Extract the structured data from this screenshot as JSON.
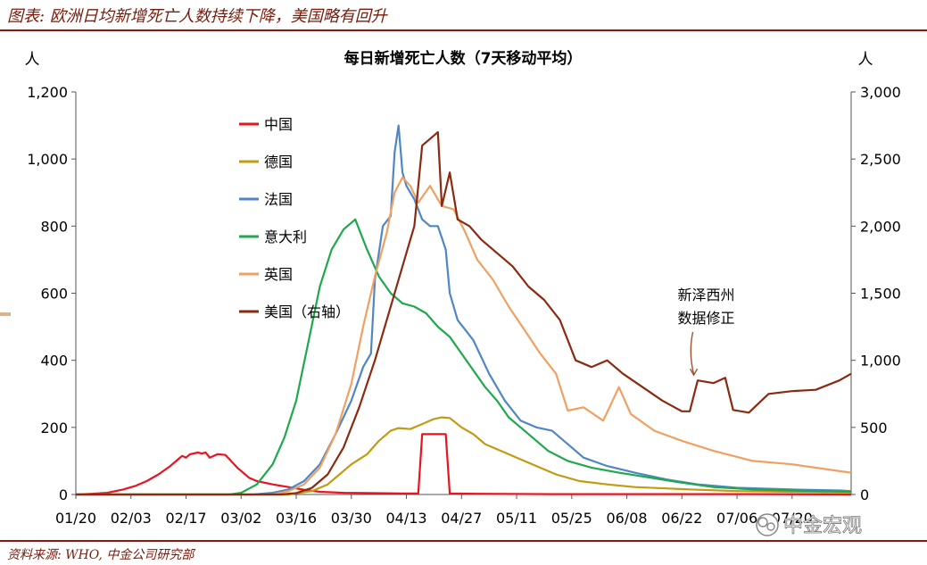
{
  "header": {
    "title": "图表: 欧洲日均新增死亡人数持续下降，美国略有回升"
  },
  "footer": {
    "source": "资料来源: WHO, 中金公司研究部"
  },
  "watermark": {
    "text": "中金宏观"
  },
  "colors": {
    "brand": "#8b1a0a"
  },
  "chart_data": {
    "type": "line",
    "title": "每日新增死亡人数（7天移动平均）",
    "ylabel_left": "人",
    "ylabel_right": "人",
    "ylim_left": [
      0,
      1200
    ],
    "ylim_right": [
      0,
      3000
    ],
    "yticks_left": [
      "0",
      "200",
      "400",
      "600",
      "800",
      "1,000",
      "1,200"
    ],
    "yticks_right": [
      "0",
      "500",
      "1,000",
      "1,500",
      "2,000",
      "2,500",
      "3,000"
    ],
    "x_range": [
      "2020-01-20",
      "2020-08-04"
    ],
    "xticks": [
      "01/20",
      "02/03",
      "02/17",
      "03/02",
      "03/16",
      "03/30",
      "04/13",
      "04/27",
      "05/11",
      "05/25",
      "06/08",
      "06/22",
      "07/06",
      "07/20"
    ],
    "grid": false,
    "legend_position": "top-left",
    "annotation": {
      "text_line1": "新泽西州",
      "text_line2": "数据修正",
      "x": "2020-06-25",
      "y_right": 870
    },
    "series": [
      {
        "name": "中国",
        "axis": "left",
        "color": "#e8141e",
        "points": [
          [
            "2020-01-20",
            0
          ],
          [
            "2020-01-24",
            2
          ],
          [
            "2020-01-28",
            5
          ],
          [
            "2020-02-01",
            15
          ],
          [
            "2020-02-04",
            25
          ],
          [
            "2020-02-07",
            40
          ],
          [
            "2020-02-10",
            60
          ],
          [
            "2020-02-13",
            85
          ],
          [
            "2020-02-15",
            105
          ],
          [
            "2020-02-16",
            115
          ],
          [
            "2020-02-17",
            110
          ],
          [
            "2020-02-18",
            120
          ],
          [
            "2020-02-20",
            125
          ],
          [
            "2020-02-21",
            122
          ],
          [
            "2020-02-22",
            125
          ],
          [
            "2020-02-23",
            110
          ],
          [
            "2020-02-25",
            120
          ],
          [
            "2020-02-27",
            118
          ],
          [
            "2020-03-01",
            80
          ],
          [
            "2020-03-04",
            50
          ],
          [
            "2020-03-06",
            40
          ],
          [
            "2020-03-10",
            30
          ],
          [
            "2020-03-14",
            22
          ],
          [
            "2020-03-18",
            14
          ],
          [
            "2020-03-22",
            8
          ],
          [
            "2020-03-28",
            5
          ],
          [
            "2020-04-05",
            4
          ],
          [
            "2020-04-12",
            3
          ],
          [
            "2020-04-16",
            3
          ],
          [
            "2020-04-17",
            180
          ],
          [
            "2020-04-23",
            180
          ],
          [
            "2020-04-24",
            3
          ],
          [
            "2020-05-01",
            2
          ],
          [
            "2020-05-20",
            1
          ],
          [
            "2020-06-10",
            1
          ],
          [
            "2020-07-10",
            1
          ],
          [
            "2020-08-04",
            0
          ]
        ]
      },
      {
        "name": "德国",
        "axis": "left",
        "color": "#c39a12",
        "points": [
          [
            "2020-01-20",
            0
          ],
          [
            "2020-03-14",
            0
          ],
          [
            "2020-03-20",
            10
          ],
          [
            "2020-03-24",
            30
          ],
          [
            "2020-03-27",
            60
          ],
          [
            "2020-03-30",
            90
          ],
          [
            "2020-04-03",
            120
          ],
          [
            "2020-04-06",
            160
          ],
          [
            "2020-04-09",
            190
          ],
          [
            "2020-04-11",
            198
          ],
          [
            "2020-04-14",
            195
          ],
          [
            "2020-04-17",
            210
          ],
          [
            "2020-04-20",
            225
          ],
          [
            "2020-04-22",
            230
          ],
          [
            "2020-04-24",
            228
          ],
          [
            "2020-04-27",
            200
          ],
          [
            "2020-04-30",
            180
          ],
          [
            "2020-05-03",
            150
          ],
          [
            "2020-05-07",
            130
          ],
          [
            "2020-05-11",
            110
          ],
          [
            "2020-05-16",
            85
          ],
          [
            "2020-05-21",
            60
          ],
          [
            "2020-05-27",
            40
          ],
          [
            "2020-06-03",
            30
          ],
          [
            "2020-06-10",
            22
          ],
          [
            "2020-06-18",
            18
          ],
          [
            "2020-06-26",
            14
          ],
          [
            "2020-07-06",
            10
          ],
          [
            "2020-07-20",
            8
          ],
          [
            "2020-08-04",
            6
          ]
        ]
      },
      {
        "name": "法国",
        "axis": "left",
        "color": "#4f86c6",
        "points": [
          [
            "2020-01-20",
            0
          ],
          [
            "2020-03-05",
            0
          ],
          [
            "2020-03-10",
            5
          ],
          [
            "2020-03-14",
            15
          ],
          [
            "2020-03-18",
            40
          ],
          [
            "2020-03-22",
            90
          ],
          [
            "2020-03-26",
            180
          ],
          [
            "2020-03-30",
            280
          ],
          [
            "2020-04-02",
            380
          ],
          [
            "2020-04-04",
            420
          ],
          [
            "2020-04-05",
            640
          ],
          [
            "2020-04-07",
            800
          ],
          [
            "2020-04-09",
            830
          ],
          [
            "2020-04-10",
            1020
          ],
          [
            "2020-04-11",
            1100
          ],
          [
            "2020-04-12",
            960
          ],
          [
            "2020-04-13",
            920
          ],
          [
            "2020-04-15",
            880
          ],
          [
            "2020-04-17",
            820
          ],
          [
            "2020-04-19",
            800
          ],
          [
            "2020-04-21",
            800
          ],
          [
            "2020-04-23",
            730
          ],
          [
            "2020-04-24",
            600
          ],
          [
            "2020-04-26",
            520
          ],
          [
            "2020-04-30",
            460
          ],
          [
            "2020-05-04",
            360
          ],
          [
            "2020-05-08",
            280
          ],
          [
            "2020-05-12",
            220
          ],
          [
            "2020-05-16",
            200
          ],
          [
            "2020-05-20",
            190
          ],
          [
            "2020-05-24",
            150
          ],
          [
            "2020-05-28",
            110
          ],
          [
            "2020-06-03",
            85
          ],
          [
            "2020-06-10",
            65
          ],
          [
            "2020-06-18",
            45
          ],
          [
            "2020-06-26",
            30
          ],
          [
            "2020-07-06",
            20
          ],
          [
            "2020-07-20",
            15
          ],
          [
            "2020-08-01",
            12
          ],
          [
            "2020-08-04",
            10
          ]
        ]
      },
      {
        "name": "意大利",
        "axis": "left",
        "color": "#1fa84c",
        "points": [
          [
            "2020-01-20",
            0
          ],
          [
            "2020-02-28",
            0
          ],
          [
            "2020-03-02",
            5
          ],
          [
            "2020-03-06",
            30
          ],
          [
            "2020-03-10",
            90
          ],
          [
            "2020-03-13",
            170
          ],
          [
            "2020-03-16",
            280
          ],
          [
            "2020-03-19",
            450
          ],
          [
            "2020-03-22",
            620
          ],
          [
            "2020-03-25",
            730
          ],
          [
            "2020-03-28",
            790
          ],
          [
            "2020-03-31",
            820
          ],
          [
            "2020-04-03",
            730
          ],
          [
            "2020-04-06",
            650
          ],
          [
            "2020-04-09",
            600
          ],
          [
            "2020-04-12",
            570
          ],
          [
            "2020-04-15",
            560
          ],
          [
            "2020-04-18",
            540
          ],
          [
            "2020-04-21",
            500
          ],
          [
            "2020-04-24",
            470
          ],
          [
            "2020-04-27",
            420
          ],
          [
            "2020-04-30",
            370
          ],
          [
            "2020-05-03",
            320
          ],
          [
            "2020-05-06",
            280
          ],
          [
            "2020-05-09",
            230
          ],
          [
            "2020-05-12",
            200
          ],
          [
            "2020-05-15",
            170
          ],
          [
            "2020-05-19",
            130
          ],
          [
            "2020-05-24",
            100
          ],
          [
            "2020-05-30",
            80
          ],
          [
            "2020-06-06",
            65
          ],
          [
            "2020-06-14",
            50
          ],
          [
            "2020-06-22",
            35
          ],
          [
            "2020-06-30",
            22
          ],
          [
            "2020-07-10",
            15
          ],
          [
            "2020-07-20",
            12
          ],
          [
            "2020-08-04",
            8
          ]
        ]
      },
      {
        "name": "英国",
        "axis": "left",
        "color": "#f0a060",
        "points": [
          [
            "2020-01-20",
            0
          ],
          [
            "2020-03-10",
            0
          ],
          [
            "2020-03-14",
            10
          ],
          [
            "2020-03-18",
            30
          ],
          [
            "2020-03-22",
            80
          ],
          [
            "2020-03-26",
            180
          ],
          [
            "2020-03-30",
            330
          ],
          [
            "2020-04-02",
            500
          ],
          [
            "2020-04-05",
            650
          ],
          [
            "2020-04-08",
            780
          ],
          [
            "2020-04-10",
            900
          ],
          [
            "2020-04-12",
            945
          ],
          [
            "2020-04-14",
            920
          ],
          [
            "2020-04-16",
            870
          ],
          [
            "2020-04-19",
            920
          ],
          [
            "2020-04-22",
            860
          ],
          [
            "2020-04-25",
            850
          ],
          [
            "2020-04-28",
            780
          ],
          [
            "2020-05-01",
            700
          ],
          [
            "2020-05-05",
            640
          ],
          [
            "2020-05-09",
            560
          ],
          [
            "2020-05-13",
            490
          ],
          [
            "2020-05-17",
            420
          ],
          [
            "2020-05-21",
            360
          ],
          [
            "2020-05-24",
            250
          ],
          [
            "2020-05-28",
            260
          ],
          [
            "2020-06-02",
            220
          ],
          [
            "2020-06-06",
            320
          ],
          [
            "2020-06-09",
            240
          ],
          [
            "2020-06-15",
            190
          ],
          [
            "2020-06-22",
            160
          ],
          [
            "2020-06-30",
            130
          ],
          [
            "2020-07-10",
            100
          ],
          [
            "2020-07-20",
            90
          ],
          [
            "2020-08-04",
            65
          ]
        ]
      },
      {
        "name": "美国（右轴）",
        "axis": "right",
        "color": "#8b2a10",
        "points": [
          [
            "2020-01-20",
            0
          ],
          [
            "2020-03-12",
            0
          ],
          [
            "2020-03-16",
            10
          ],
          [
            "2020-03-20",
            50
          ],
          [
            "2020-03-24",
            150
          ],
          [
            "2020-03-28",
            350
          ],
          [
            "2020-04-01",
            650
          ],
          [
            "2020-04-05",
            1000
          ],
          [
            "2020-04-09",
            1400
          ],
          [
            "2020-04-13",
            1800
          ],
          [
            "2020-04-15",
            2000
          ],
          [
            "2020-04-17",
            2600
          ],
          [
            "2020-04-19",
            2650
          ],
          [
            "2020-04-21",
            2700
          ],
          [
            "2020-04-22",
            2150
          ],
          [
            "2020-04-24",
            2400
          ],
          [
            "2020-04-26",
            2050
          ],
          [
            "2020-04-29",
            2000
          ],
          [
            "2020-05-02",
            1900
          ],
          [
            "2020-05-06",
            1800
          ],
          [
            "2020-05-10",
            1700
          ],
          [
            "2020-05-14",
            1550
          ],
          [
            "2020-05-18",
            1450
          ],
          [
            "2020-05-22",
            1300
          ],
          [
            "2020-05-26",
            1000
          ],
          [
            "2020-05-30",
            950
          ],
          [
            "2020-06-03",
            1000
          ],
          [
            "2020-06-07",
            900
          ],
          [
            "2020-06-12",
            800
          ],
          [
            "2020-06-17",
            700
          ],
          [
            "2020-06-22",
            620
          ],
          [
            "2020-06-24",
            620
          ],
          [
            "2020-06-26",
            850
          ],
          [
            "2020-06-30",
            830
          ],
          [
            "2020-07-03",
            870
          ],
          [
            "2020-07-05",
            630
          ],
          [
            "2020-07-09",
            610
          ],
          [
            "2020-07-14",
            750
          ],
          [
            "2020-07-20",
            770
          ],
          [
            "2020-07-26",
            780
          ],
          [
            "2020-08-01",
            850
          ],
          [
            "2020-08-04",
            900
          ]
        ]
      }
    ]
  }
}
